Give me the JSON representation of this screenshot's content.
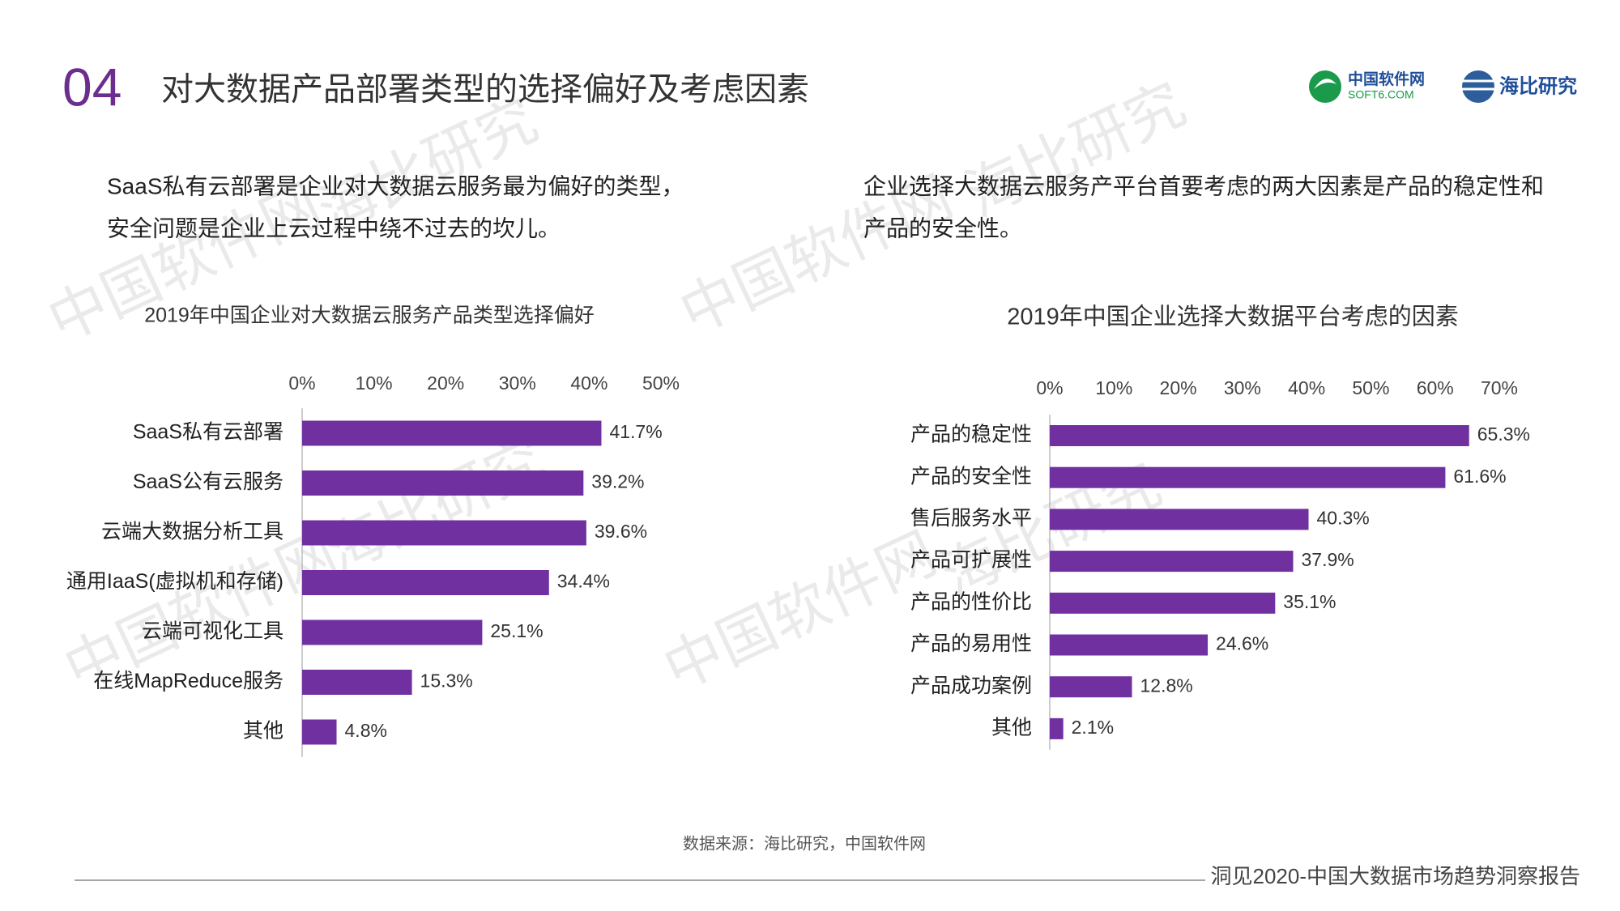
{
  "header": {
    "number": "04",
    "title": "对大数据产品部署类型的选择偏好及考虑因素"
  },
  "logos": {
    "soft6_name": "中国软件网",
    "soft6_domain": "SOFT6.COM",
    "haibi": "海比研究"
  },
  "intro": {
    "left": [
      "SaaS私有云部署是企业对大数据云服务最为偏好的类型，",
      "安全问题是企业上云过程中绕不过去的坎儿。"
    ],
    "right": [
      "企业选择大数据云服务产平台首要考虑的两大因素是产品的稳定性和",
      "产品的安全性。"
    ]
  },
  "watermarks": [
    "中国软件网",
    "海比研究",
    "中国软件网",
    "海比研究",
    "中国软件网",
    "海比研究",
    "中国软件网",
    "海比研究"
  ],
  "source": "数据来源：海比研究，中国软件网",
  "footer": "洞见2020-中国大数据市场趋势洞察报告",
  "chart_data": [
    {
      "type": "bar",
      "orientation": "horizontal",
      "title": "2019年中国企业对大数据云服务产品类型选择偏好",
      "categories": [
        "SaaS私有云部署",
        "SaaS公有云服务",
        "云端大数据分析工具",
        "通用IaaS(虚拟机和存储)",
        "云端可视化工具",
        "在线MapReduce服务",
        "其他"
      ],
      "values": [
        41.7,
        39.2,
        39.6,
        34.4,
        25.1,
        15.3,
        4.8
      ],
      "value_labels": [
        "41.7%",
        "39.2%",
        "39.6%",
        "34.4%",
        "25.1%",
        "15.3%",
        "4.8%"
      ],
      "color": "#7030a0",
      "xlim": [
        0,
        50
      ],
      "xticks": [
        {
          "value": 0,
          "label": "0%"
        },
        {
          "value": 10,
          "label": "10%"
        },
        {
          "value": 20,
          "label": "20%"
        },
        {
          "value": 30,
          "label": "30%"
        },
        {
          "value": 40,
          "label": "40%"
        },
        {
          "value": 50,
          "label": "50%"
        }
      ]
    },
    {
      "type": "bar",
      "orientation": "horizontal",
      "title": "2019年中国企业选择大数据平台考虑的因素",
      "categories": [
        "产品的稳定性",
        "产品的安全性",
        "售后服务水平",
        "产品可扩展性",
        "产品的性价比",
        "产品的易用性",
        "产品成功案例",
        "其他"
      ],
      "values": [
        65.3,
        61.6,
        40.3,
        37.9,
        35.1,
        24.6,
        12.8,
        2.1
      ],
      "value_labels": [
        "65.3%",
        "61.6%",
        "40.3%",
        "37.9%",
        "35.1%",
        "24.6%",
        "12.8%",
        "2.1%"
      ],
      "color": "#7030a0",
      "xlim": [
        0,
        70
      ],
      "xticks": [
        {
          "value": 0,
          "label": "0%"
        },
        {
          "value": 10,
          "label": "10%"
        },
        {
          "value": 20,
          "label": "20%"
        },
        {
          "value": 30,
          "label": "30%"
        },
        {
          "value": 40,
          "label": "40%"
        },
        {
          "value": 50,
          "label": "50%"
        },
        {
          "value": 60,
          "label": "60%"
        },
        {
          "value": 70,
          "label": "70%"
        }
      ]
    }
  ]
}
